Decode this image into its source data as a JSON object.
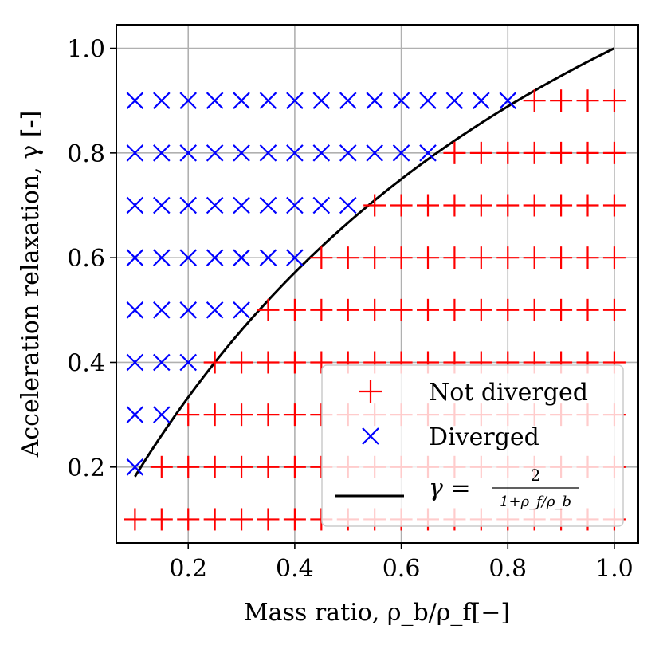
{
  "chart_data": {
    "type": "scatter",
    "xlabel": "Mass ratio, ρ_b/ρ_f[−]",
    "ylabel": "Acceleration relaxation, γ [-]",
    "xlim": [
      0.065,
      1.045
    ],
    "ylim": [
      0.055,
      1.045
    ],
    "xticks": [
      0.2,
      0.4,
      0.6,
      0.8,
      1.0
    ],
    "yticks": [
      0.2,
      0.4,
      0.6,
      0.8,
      1.0
    ],
    "xtick_labels": [
      "0.2",
      "0.4",
      "0.6",
      "0.8",
      "1.0"
    ],
    "ytick_labels": [
      "0.2",
      "0.4",
      "0.6",
      "0.8",
      "1.0"
    ],
    "grid": true,
    "mass_ratios": [
      0.1,
      0.15,
      0.2,
      0.25,
      0.3,
      0.35,
      0.4,
      0.45,
      0.5,
      0.55,
      0.6,
      0.65,
      0.7,
      0.75,
      0.8,
      0.85,
      0.9,
      0.95,
      1.0
    ],
    "gammas": [
      0.1,
      0.2,
      0.3,
      0.4,
      0.5,
      0.6,
      0.7,
      0.8,
      0.9
    ],
    "series": [
      {
        "name": "Not diverged",
        "marker": "plus",
        "color": "#ff0000",
        "rule": "gamma <= 2/(1+1/x)"
      },
      {
        "name": "Diverged",
        "marker": "x",
        "color": "#0000ff",
        "rule": "gamma > 2/(1+1/x)"
      },
      {
        "name": "γ = 2 / (1+ρ_f/ρ_b)",
        "marker": "line",
        "color": "#000000",
        "x_range": [
          0.1,
          1.0
        ]
      }
    ],
    "legend": {
      "position": "lower-right",
      "entries": [
        {
          "label": "Not diverged",
          "marker": "plus",
          "color": "#ff0000"
        },
        {
          "label": "Diverged",
          "marker": "x",
          "color": "#0000ff"
        },
        {
          "label_main": "γ = ",
          "frac_num": "2",
          "frac_den": "1+ρ_f/ρ_b",
          "marker": "line",
          "color": "#000000"
        }
      ]
    }
  }
}
